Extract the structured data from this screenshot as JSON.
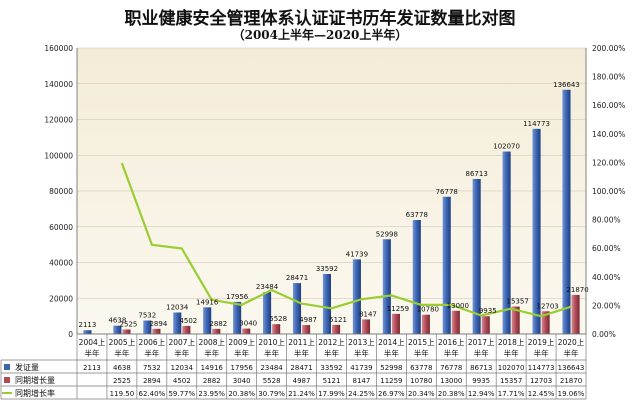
{
  "chart_data": {
    "type": "bar",
    "title": "职业健康安全管理体系认证证书历年发证数量比对图",
    "subtitle": "（2004上半年—2020上半年）",
    "categories": [
      "2004上半年",
      "2005上半年",
      "2006上半年",
      "2007上半年",
      "2008上半年",
      "2009上半年",
      "2010上半年",
      "2011上半年",
      "2012上半年",
      "2013上半年",
      "2014上半年",
      "2015上半年",
      "2016上半年",
      "2017上半年",
      "2018上半年",
      "2019上半年",
      "2020上半年"
    ],
    "series": [
      {
        "name": "发证量",
        "type": "bar",
        "axis": "left",
        "color": "#3a63b0",
        "values": [
          2113,
          4638,
          7532,
          12034,
          14916,
          17956,
          23484,
          28471,
          33592,
          41739,
          52998,
          63778,
          76778,
          86713,
          102070,
          114773,
          136643
        ],
        "labels": [
          "2113",
          "4638",
          "7532",
          "12034",
          "14916",
          "17956",
          "23484",
          "28471",
          "33592",
          "41739",
          "52998",
          "63778",
          "76778",
          "86713",
          "102070",
          "114773",
          "136643"
        ]
      },
      {
        "name": "同期增长量",
        "type": "bar",
        "axis": "left",
        "color": "#b04a55",
        "values": [
          null,
          2525,
          2894,
          4502,
          2882,
          3040,
          5528,
          4987,
          5121,
          8147,
          11259,
          10780,
          13000,
          9935,
          15357,
          12703,
          21870
        ],
        "labels": [
          "",
          "2525",
          "2894",
          "4502",
          "2882",
          "3040",
          "5528",
          "4987",
          "5121",
          "8147",
          "11259",
          "10780",
          "13000",
          "9935",
          "15357",
          "12703",
          "21870"
        ]
      },
      {
        "name": "同期增长率",
        "type": "line",
        "axis": "right",
        "color": "#9acd32",
        "values": [
          null,
          119.5,
          62.4,
          59.77,
          23.95,
          20.38,
          30.79,
          21.24,
          17.99,
          24.25,
          26.97,
          20.34,
          20.38,
          12.94,
          17.71,
          12.45,
          19.06
        ],
        "labels": [
          "",
          "119.50",
          "62.40%",
          "59.77%",
          "23.95%",
          "20.38%",
          "30.79%",
          "21.24%",
          "17.99%",
          "24.25%",
          "26.97%",
          "20.34%",
          "20.38%",
          "12.94%",
          "17.71%",
          "12.45%",
          "19.06%"
        ]
      }
    ],
    "y_left": {
      "min": 0,
      "max": 160000,
      "ticks": [
        "0",
        "20000",
        "40000",
        "60000",
        "80000",
        "100000",
        "120000",
        "140000",
        "160000"
      ]
    },
    "y_right": {
      "min": 0,
      "max": 200,
      "ticks": [
        "0.00%",
        "20.00%",
        "40.00%",
        "60.00%",
        "80.00%",
        "100.00%",
        "120.00%",
        "140.00%",
        "160.00%",
        "180.00%",
        "200.00%"
      ]
    },
    "grid": true,
    "legend": "data-table-bottom"
  }
}
